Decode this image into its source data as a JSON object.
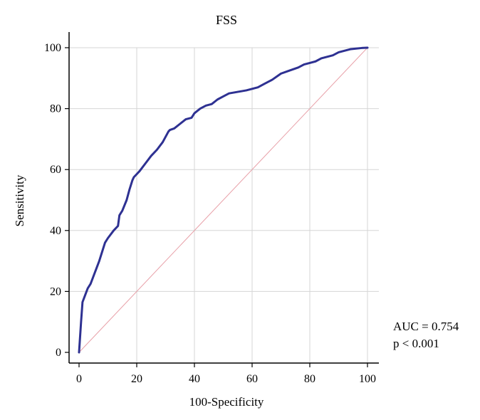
{
  "chart_data": {
    "type": "line",
    "title": "FSS",
    "xlabel": "100-Specificity",
    "ylabel": "Sensitivity",
    "xlim": [
      0,
      100
    ],
    "ylim": [
      0,
      100
    ],
    "xticks": [
      0,
      20,
      40,
      60,
      80,
      100
    ],
    "yticks": [
      0,
      20,
      40,
      60,
      80,
      100
    ],
    "grid": true,
    "series": [
      {
        "color": "#2e3192",
        "x": [
          0,
          0.7,
          1.2,
          2.0,
          3.0,
          4.0,
          5.0,
          6.0,
          7.0,
          8.0,
          9.0,
          10.0,
          12.0,
          13.5,
          14.0,
          15.0,
          16.5,
          17.5,
          18.5,
          19.0,
          20.0,
          21.0,
          23.0,
          25.0,
          27.0,
          29.0,
          31.0,
          31.5,
          33.0,
          35.0,
          37.0,
          39.0,
          40.0,
          42.0,
          44.0,
          46.0,
          48.0,
          50.0,
          52.0,
          55.0,
          58.0,
          60.0,
          62.0,
          64.0,
          66.0,
          67.0,
          70.0,
          73.0,
          76.0,
          78.0,
          80.0,
          82.0,
          84.0,
          86.0,
          88.0,
          90.0,
          92.0,
          94.0,
          96.0,
          98.0,
          100.0
        ],
        "y": [
          0,
          10,
          16.5,
          18.5,
          21,
          22.5,
          25,
          27.5,
          30,
          33,
          36,
          37.5,
          40,
          41.5,
          45,
          46.5,
          50,
          53.5,
          56.5,
          57.5,
          58.5,
          59.5,
          62,
          64.5,
          66.5,
          69,
          72.5,
          73,
          73.5,
          75,
          76.5,
          77,
          78.5,
          80,
          81,
          81.5,
          83,
          84,
          85,
          85.5,
          86,
          86.5,
          87,
          88,
          89,
          89.5,
          91.5,
          92.5,
          93.5,
          94.5,
          95,
          95.5,
          96.5,
          97,
          97.5,
          98.5,
          99,
          99.5,
          99.7,
          99.9,
          100
        ]
      },
      {
        "color": "#e8a0a8",
        "x": [
          0,
          100
        ],
        "y": [
          0,
          100
        ]
      }
    ]
  },
  "annotation": {
    "auc": "AUC = 0.754",
    "p": "p < 0.001"
  }
}
